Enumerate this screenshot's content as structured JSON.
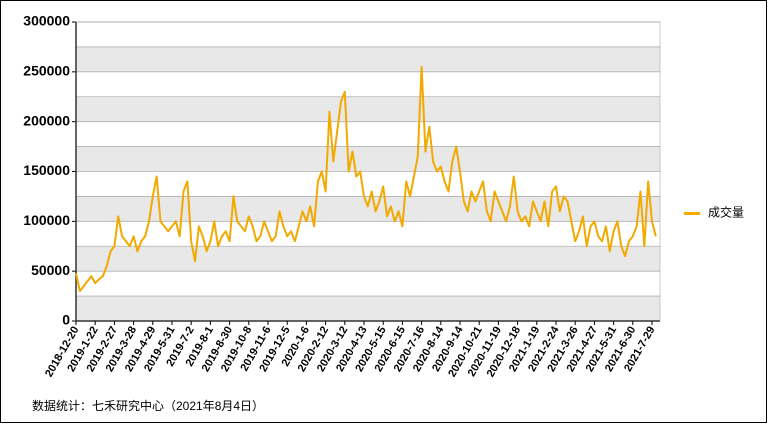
{
  "chart_data": {
    "type": "line",
    "source": "数据统计：七禾研究中心（2021年8月4日）",
    "legend": "right",
    "categories": [
      "2018-12-20",
      null,
      null,
      null,
      null,
      "2019-1-22",
      null,
      null,
      null,
      null,
      "2019-2-27",
      null,
      null,
      null,
      null,
      "2019-3-28",
      null,
      null,
      null,
      null,
      "2019-4-29",
      null,
      null,
      null,
      null,
      "2019-5-31",
      null,
      null,
      null,
      null,
      "2019-7-2",
      null,
      null,
      null,
      null,
      "2019-8-1",
      null,
      null,
      null,
      null,
      "2019-8-30",
      null,
      null,
      null,
      null,
      "2019-10-8",
      null,
      null,
      null,
      null,
      "2019-11-6",
      null,
      null,
      null,
      null,
      "2019-12-5",
      null,
      null,
      null,
      null,
      "2020-1-6",
      null,
      null,
      null,
      null,
      "2020-2-12",
      null,
      null,
      null,
      null,
      "2020-3-12",
      null,
      null,
      null,
      null,
      "2020-4-13",
      null,
      null,
      null,
      null,
      "2020-5-15",
      null,
      null,
      null,
      null,
      "2020-6-15",
      null,
      null,
      null,
      null,
      "2020-7-16",
      null,
      null,
      null,
      null,
      "2020-8-14",
      null,
      null,
      null,
      null,
      "2020-9-14",
      null,
      null,
      null,
      null,
      "2020-10-21",
      null,
      null,
      null,
      null,
      "2020-11-19",
      null,
      null,
      null,
      null,
      "2020-12-18",
      null,
      null,
      null,
      null,
      "2021-1-19",
      null,
      null,
      null,
      null,
      "2021-2-24",
      null,
      null,
      null,
      null,
      "2021-3-26",
      null,
      null,
      null,
      null,
      "2021-4-27",
      null,
      null,
      null,
      null,
      "2021-5-31",
      null,
      null,
      null,
      null,
      "2021-6-30",
      null,
      null,
      null,
      null,
      "2021-7-29",
      null
    ],
    "series": [
      {
        "name": "成交量",
        "color": "#f2a900",
        "values": [
          48000,
          30000,
          35000,
          40000,
          45000,
          38000,
          42000,
          45000,
          55000,
          70000,
          75000,
          105000,
          85000,
          80000,
          75000,
          85000,
          70000,
          80000,
          85000,
          100000,
          125000,
          145000,
          100000,
          95000,
          90000,
          95000,
          100000,
          85000,
          130000,
          140000,
          80000,
          60000,
          95000,
          85000,
          70000,
          80000,
          100000,
          75000,
          85000,
          90000,
          80000,
          125000,
          100000,
          95000,
          90000,
          105000,
          95000,
          80000,
          85000,
          100000,
          90000,
          80000,
          85000,
          110000,
          95000,
          85000,
          90000,
          80000,
          95000,
          110000,
          100000,
          115000,
          95000,
          140000,
          150000,
          130000,
          210000,
          160000,
          190000,
          220000,
          230000,
          150000,
          170000,
          145000,
          150000,
          125000,
          115000,
          130000,
          110000,
          120000,
          135000,
          105000,
          115000,
          100000,
          110000,
          95000,
          140000,
          125000,
          145000,
          165000,
          255000,
          170000,
          195000,
          160000,
          150000,
          155000,
          140000,
          130000,
          160000,
          175000,
          150000,
          120000,
          110000,
          130000,
          120000,
          130000,
          140000,
          110000,
          100000,
          130000,
          120000,
          110000,
          100000,
          115000,
          145000,
          110000,
          100000,
          105000,
          95000,
          120000,
          110000,
          100000,
          120000,
          95000,
          130000,
          135000,
          110000,
          125000,
          120000,
          100000,
          80000,
          90000,
          105000,
          75000,
          95000,
          100000,
          85000,
          80000,
          95000,
          70000,
          90000,
          100000,
          75000,
          65000,
          80000,
          85000,
          95000,
          130000,
          75000,
          140000,
          100000,
          85000
        ]
      }
    ],
    "ylim": [
      0,
      300000
    ],
    "yticks": [
      0,
      50000,
      100000,
      150000,
      200000,
      250000,
      300000
    ],
    "grid": true
  }
}
